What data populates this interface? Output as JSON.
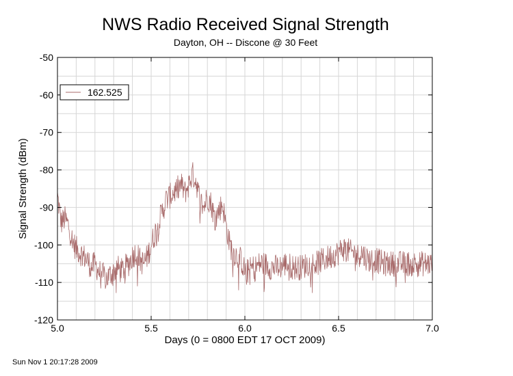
{
  "chart_data": {
    "type": "line",
    "title": "NWS Radio Received Signal Strength",
    "subtitle": "Dayton, OH -- Discone @ 30 Feet",
    "xlabel": "Days (0 = 0800 EDT 17 OCT 2009)",
    "ylabel": "Signal Strength (dBm)",
    "xlim": [
      5.0,
      7.0
    ],
    "ylim": [
      -120,
      -50
    ],
    "x_ticks": [
      "5.0",
      "5.5",
      "6.0",
      "6.5",
      "7.0"
    ],
    "y_ticks": [
      "-50",
      "-60",
      "-70",
      "-80",
      "-90",
      "-100",
      "-110",
      "-120"
    ],
    "grid": true,
    "legend_position": "top-left",
    "series": [
      {
        "name": "162.525",
        "color": "#a86a6a",
        "points": [
          [
            5.0,
            -87
          ],
          [
            5.02,
            -94
          ],
          [
            5.04,
            -93
          ],
          [
            5.06,
            -95
          ],
          [
            5.08,
            -99
          ],
          [
            5.1,
            -101
          ],
          [
            5.12,
            -102
          ],
          [
            5.14,
            -103
          ],
          [
            5.16,
            -104
          ],
          [
            5.18,
            -106
          ],
          [
            5.2,
            -105
          ],
          [
            5.22,
            -107
          ],
          [
            5.24,
            -108
          ],
          [
            5.26,
            -109
          ],
          [
            5.28,
            -108
          ],
          [
            5.3,
            -107
          ],
          [
            5.32,
            -106
          ],
          [
            5.34,
            -107
          ],
          [
            5.36,
            -106
          ],
          [
            5.38,
            -105
          ],
          [
            5.4,
            -103
          ],
          [
            5.42,
            -102
          ],
          [
            5.44,
            -104
          ],
          [
            5.46,
            -105
          ],
          [
            5.48,
            -103
          ],
          [
            5.5,
            -100
          ],
          [
            5.52,
            -97
          ],
          [
            5.54,
            -94
          ],
          [
            5.56,
            -91
          ],
          [
            5.58,
            -88
          ],
          [
            5.6,
            -87
          ],
          [
            5.62,
            -86
          ],
          [
            5.64,
            -85
          ],
          [
            5.66,
            -84
          ],
          [
            5.68,
            -86
          ],
          [
            5.7,
            -84
          ],
          [
            5.72,
            -81
          ],
          [
            5.74,
            -83
          ],
          [
            5.76,
            -88
          ],
          [
            5.78,
            -90
          ],
          [
            5.8,
            -87
          ],
          [
            5.82,
            -89
          ],
          [
            5.84,
            -93
          ],
          [
            5.86,
            -91
          ],
          [
            5.88,
            -89
          ],
          [
            5.9,
            -95
          ],
          [
            5.92,
            -100
          ],
          [
            5.94,
            -102
          ],
          [
            5.96,
            -103
          ],
          [
            5.98,
            -104
          ],
          [
            6.0,
            -107
          ],
          [
            6.02,
            -107
          ],
          [
            6.04,
            -106
          ],
          [
            6.06,
            -106
          ],
          [
            6.08,
            -105
          ],
          [
            6.1,
            -105
          ],
          [
            6.14,
            -106
          ],
          [
            6.18,
            -106
          ],
          [
            6.22,
            -105
          ],
          [
            6.26,
            -106
          ],
          [
            6.3,
            -106
          ],
          [
            6.34,
            -105
          ],
          [
            6.38,
            -105
          ],
          [
            6.42,
            -104
          ],
          [
            6.46,
            -103
          ],
          [
            6.5,
            -102
          ],
          [
            6.52,
            -101
          ],
          [
            6.54,
            -101
          ],
          [
            6.56,
            -102
          ],
          [
            6.58,
            -102
          ],
          [
            6.6,
            -103
          ],
          [
            6.62,
            -102
          ],
          [
            6.66,
            -104
          ],
          [
            6.7,
            -104
          ],
          [
            6.74,
            -105
          ],
          [
            6.78,
            -105
          ],
          [
            6.82,
            -105
          ],
          [
            6.86,
            -105
          ],
          [
            6.9,
            -105
          ],
          [
            6.94,
            -105
          ],
          [
            6.98,
            -105
          ],
          [
            7.0,
            -105
          ]
        ]
      }
    ]
  },
  "footer": {
    "timestamp": "Sun Nov  1 20:17:28 2009"
  }
}
